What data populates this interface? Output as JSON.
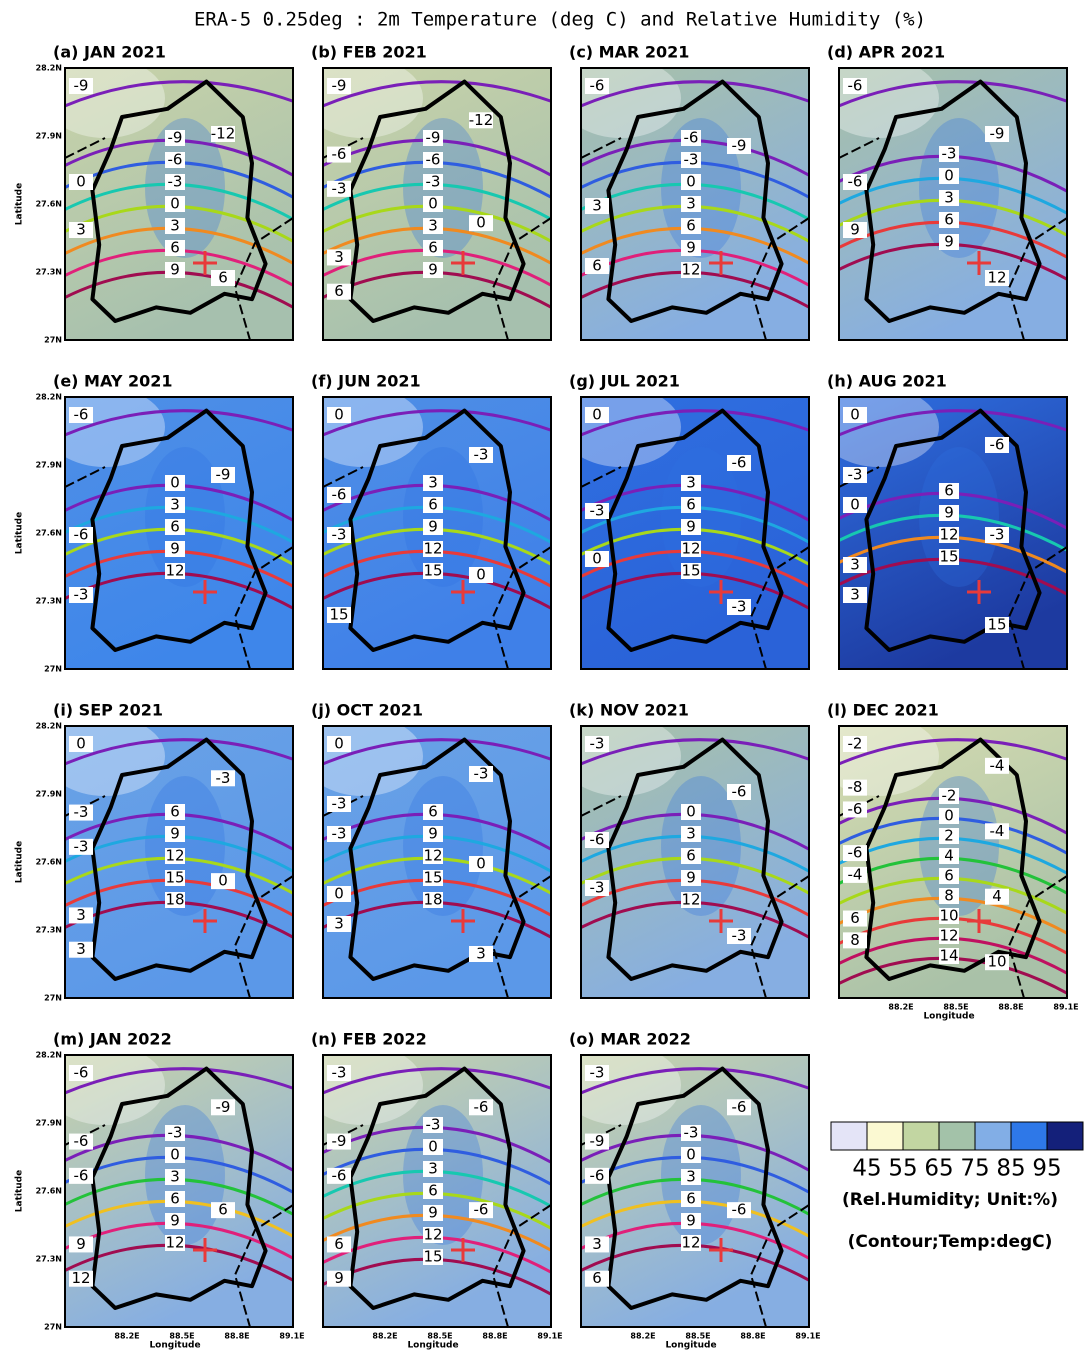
{
  "title": "ERA-5 0.25deg : 2m Temperature (deg C) and Relative Humidity (%)",
  "lat_ticks": [
    "28.2N",
    "27.9N",
    "27.6N",
    "27.3N",
    "27N"
  ],
  "lon_ticks": [
    "88.2E",
    "88.5E",
    "88.8E",
    "89.1E"
  ],
  "lat_label": "Latitude",
  "lon_label": "Longitude",
  "panels": [
    {
      "label": "(a) JAN 2021",
      "center": [
        "-9",
        "-6",
        "-3",
        "0",
        "3",
        "6",
        "9"
      ],
      "side": [
        "-9",
        "-12",
        "0",
        "3",
        "6"
      ]
    },
    {
      "label": "(b) FEB 2021",
      "center": [
        "-9",
        "-6",
        "-3",
        "0",
        "3",
        "6",
        "9"
      ],
      "side": [
        "-9",
        "-12",
        "-6",
        "-3",
        "0",
        "3",
        "6"
      ]
    },
    {
      "label": "(c) MAR 2021",
      "center": [
        "-6",
        "-3",
        "0",
        "3",
        "6",
        "9",
        "12"
      ],
      "side": [
        "-6",
        "-9",
        "3",
        "6"
      ]
    },
    {
      "label": "(d) APR 2021",
      "center": [
        "-3",
        "0",
        "3",
        "6",
        "9"
      ],
      "side": [
        "-6",
        "-9",
        "-6",
        "9",
        "12"
      ]
    },
    {
      "label": "(e) MAY 2021",
      "center": [
        "0",
        "3",
        "6",
        "9",
        "12"
      ],
      "side": [
        "-6",
        "-9",
        "-6",
        "-3"
      ]
    },
    {
      "label": "(f) JUN 2021",
      "center": [
        "3",
        "6",
        "9",
        "12",
        "15"
      ],
      "side": [
        "0",
        "-3",
        "-6",
        "-3",
        "0",
        "15"
      ]
    },
    {
      "label": "(g) JUL 2021",
      "center": [
        "3",
        "6",
        "9",
        "12",
        "15"
      ],
      "side": [
        "0",
        "-6",
        "-3",
        "0",
        "-3"
      ]
    },
    {
      "label": "(h) AUG 2021",
      "center": [
        "6",
        "9",
        "12",
        "15"
      ],
      "side": [
        "0",
        "-6",
        "-3",
        "0",
        "-3",
        "3",
        "3",
        "15"
      ]
    },
    {
      "label": "(i) SEP 2021",
      "center": [
        "6",
        "9",
        "12",
        "15",
        "18"
      ],
      "side": [
        "0",
        "-3",
        "-3",
        "-3",
        "0",
        "3",
        "3"
      ]
    },
    {
      "label": "(j) OCT 2021",
      "center": [
        "6",
        "9",
        "12",
        "15",
        "18"
      ],
      "side": [
        "0",
        "-3",
        "-3",
        "-3",
        "0",
        "0",
        "3",
        "3"
      ]
    },
    {
      "label": "(k) NOV 2021",
      "center": [
        "0",
        "3",
        "6",
        "9",
        "12"
      ],
      "side": [
        "-3",
        "-6",
        "-6",
        "-3",
        "-3"
      ]
    },
    {
      "label": "(l) DEC 2021",
      "center": [
        "-2",
        "0",
        "2",
        "4",
        "6",
        "8",
        "10",
        "12",
        "14"
      ],
      "side": [
        "-2",
        "-4",
        "-8",
        "-6",
        "-4",
        "-6",
        "-4",
        "4",
        "6",
        "8",
        "10"
      ]
    },
    {
      "label": "(m) JAN 2022",
      "center": [
        "-3",
        "0",
        "3",
        "6",
        "9",
        "12"
      ],
      "side": [
        "-6",
        "-9",
        "-6",
        "-6",
        "6",
        "9",
        "12"
      ]
    },
    {
      "label": "(n) FEB 2022",
      "center": [
        "-3",
        "0",
        "3",
        "6",
        "9",
        "12",
        "15"
      ],
      "side": [
        "-3",
        "-6",
        "-9",
        "-6",
        "-6",
        "6",
        "9"
      ]
    },
    {
      "label": "(o) MAR 2022",
      "center": [
        "-3",
        "0",
        "3",
        "6",
        "9",
        "12"
      ],
      "side": [
        "-3",
        "-6",
        "-9",
        "-6",
        "-6",
        "3",
        "6"
      ]
    }
  ],
  "colorbar": {
    "labels": [
      "45",
      "55",
      "65",
      "75",
      "85",
      "95"
    ],
    "title": "(Rel.Humidity; Unit:%)",
    "note": "(Contour;Temp:degC)"
  }
}
